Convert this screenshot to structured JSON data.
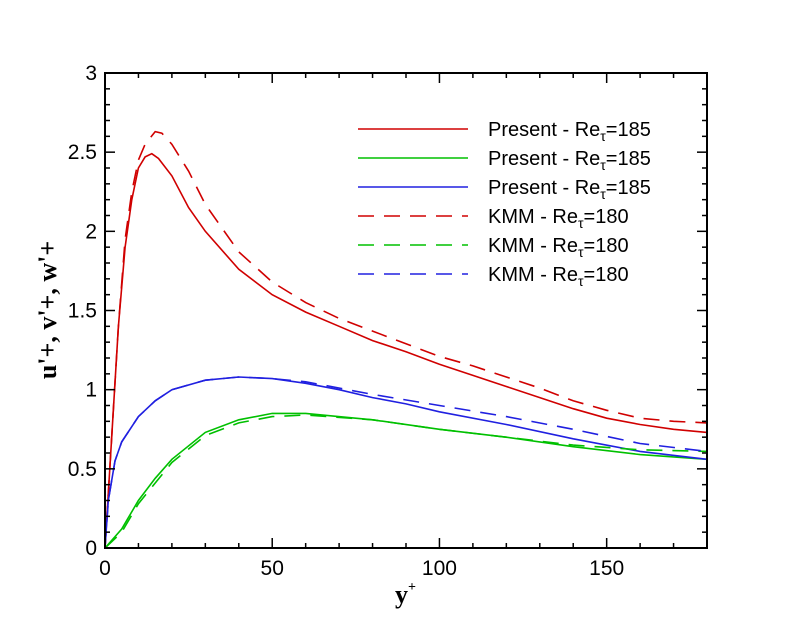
{
  "chart_data": {
    "type": "line",
    "title": "",
    "xlabel": "y+",
    "ylabel": "u'+, v'+, w'+",
    "xlim": [
      0,
      180
    ],
    "ylim": [
      0,
      3
    ],
    "xticks": [
      "0",
      "50",
      "100",
      "150"
    ],
    "xtick_values": [
      0,
      50,
      100,
      150
    ],
    "yticks": [
      "0",
      "0.5",
      "1",
      "1.5",
      "2",
      "2.5",
      "3"
    ],
    "ytick_values": [
      0,
      0.5,
      1,
      1.5,
      2,
      2.5,
      3
    ],
    "grid": false,
    "legend_position": "top-right",
    "series": [
      {
        "name": "Present - Reτ=185",
        "label_main": "Present - Re",
        "label_sub": "τ",
        "label_tail": "=185",
        "color": "#d00000",
        "dash": false,
        "points": [
          [
            0,
            0
          ],
          [
            2,
            0.7
          ],
          [
            4,
            1.4
          ],
          [
            6,
            1.9
          ],
          [
            8,
            2.2
          ],
          [
            10,
            2.4
          ],
          [
            12,
            2.47
          ],
          [
            14,
            2.49
          ],
          [
            16,
            2.46
          ],
          [
            20,
            2.35
          ],
          [
            25,
            2.15
          ],
          [
            30,
            2.0
          ],
          [
            40,
            1.76
          ],
          [
            50,
            1.6
          ],
          [
            60,
            1.49
          ],
          [
            70,
            1.4
          ],
          [
            80,
            1.31
          ],
          [
            90,
            1.24
          ],
          [
            100,
            1.16
          ],
          [
            110,
            1.09
          ],
          [
            120,
            1.02
          ],
          [
            130,
            0.95
          ],
          [
            140,
            0.88
          ],
          [
            150,
            0.82
          ],
          [
            160,
            0.78
          ],
          [
            170,
            0.75
          ],
          [
            180,
            0.73
          ]
        ]
      },
      {
        "name": "Present - Reτ=185",
        "label_main": "Present - Re",
        "label_sub": "τ",
        "label_tail": "=185",
        "color": "#00c000",
        "dash": false,
        "points": [
          [
            0,
            0
          ],
          [
            5,
            0.12
          ],
          [
            10,
            0.3
          ],
          [
            15,
            0.44
          ],
          [
            20,
            0.56
          ],
          [
            30,
            0.73
          ],
          [
            40,
            0.81
          ],
          [
            50,
            0.85
          ],
          [
            60,
            0.85
          ],
          [
            80,
            0.81
          ],
          [
            100,
            0.75
          ],
          [
            120,
            0.7
          ],
          [
            140,
            0.64
          ],
          [
            160,
            0.59
          ],
          [
            180,
            0.56
          ]
        ]
      },
      {
        "name": "Present - Reτ=185",
        "label_main": "Present - Re",
        "label_sub": "τ",
        "label_tail": "=185",
        "color": "#2020e0",
        "dash": false,
        "points": [
          [
            0,
            0
          ],
          [
            1,
            0.3
          ],
          [
            3,
            0.55
          ],
          [
            5,
            0.67
          ],
          [
            10,
            0.83
          ],
          [
            15,
            0.93
          ],
          [
            20,
            1.0
          ],
          [
            30,
            1.06
          ],
          [
            40,
            1.08
          ],
          [
            50,
            1.07
          ],
          [
            60,
            1.04
          ],
          [
            70,
            1.0
          ],
          [
            80,
            0.95
          ],
          [
            90,
            0.91
          ],
          [
            100,
            0.86
          ],
          [
            120,
            0.78
          ],
          [
            140,
            0.69
          ],
          [
            160,
            0.61
          ],
          [
            180,
            0.56
          ]
        ]
      },
      {
        "name": "KMM - Reτ=180",
        "label_main": "KMM - Re",
        "label_sub": "τ",
        "label_tail": "=180",
        "color": "#d00000",
        "dash": true,
        "points": [
          [
            0,
            0
          ],
          [
            2,
            0.7
          ],
          [
            4,
            1.4
          ],
          [
            6,
            1.95
          ],
          [
            8,
            2.25
          ],
          [
            10,
            2.45
          ],
          [
            12,
            2.55
          ],
          [
            15,
            2.63
          ],
          [
            17,
            2.62
          ],
          [
            20,
            2.55
          ],
          [
            25,
            2.38
          ],
          [
            30,
            2.17
          ],
          [
            40,
            1.87
          ],
          [
            50,
            1.68
          ],
          [
            60,
            1.55
          ],
          [
            70,
            1.45
          ],
          [
            80,
            1.37
          ],
          [
            90,
            1.29
          ],
          [
            100,
            1.21
          ],
          [
            110,
            1.15
          ],
          [
            120,
            1.08
          ],
          [
            130,
            1.01
          ],
          [
            140,
            0.93
          ],
          [
            150,
            0.87
          ],
          [
            160,
            0.82
          ],
          [
            170,
            0.8
          ],
          [
            180,
            0.79
          ]
        ]
      },
      {
        "name": "KMM - Reτ=180",
        "label_main": "KMM - Re",
        "label_sub": "τ",
        "label_tail": "=180",
        "color": "#00c000",
        "dash": true,
        "points": [
          [
            0,
            0
          ],
          [
            5,
            0.1
          ],
          [
            10,
            0.28
          ],
          [
            20,
            0.54
          ],
          [
            30,
            0.71
          ],
          [
            40,
            0.79
          ],
          [
            50,
            0.83
          ],
          [
            60,
            0.84
          ],
          [
            80,
            0.81
          ],
          [
            100,
            0.75
          ],
          [
            120,
            0.7
          ],
          [
            140,
            0.65
          ],
          [
            160,
            0.62
          ],
          [
            180,
            0.61
          ]
        ]
      },
      {
        "name": "KMM - Reτ=180",
        "label_main": "KMM - Re",
        "label_sub": "τ",
        "label_tail": "=180",
        "color": "#2020e0",
        "dash": true,
        "points": [
          [
            0,
            0
          ],
          [
            1,
            0.3
          ],
          [
            3,
            0.55
          ],
          [
            5,
            0.67
          ],
          [
            10,
            0.83
          ],
          [
            15,
            0.93
          ],
          [
            20,
            1.0
          ],
          [
            30,
            1.06
          ],
          [
            40,
            1.08
          ],
          [
            50,
            1.07
          ],
          [
            60,
            1.05
          ],
          [
            80,
            0.97
          ],
          [
            100,
            0.9
          ],
          [
            120,
            0.83
          ],
          [
            140,
            0.75
          ],
          [
            160,
            0.66
          ],
          [
            180,
            0.61
          ]
        ]
      }
    ]
  }
}
